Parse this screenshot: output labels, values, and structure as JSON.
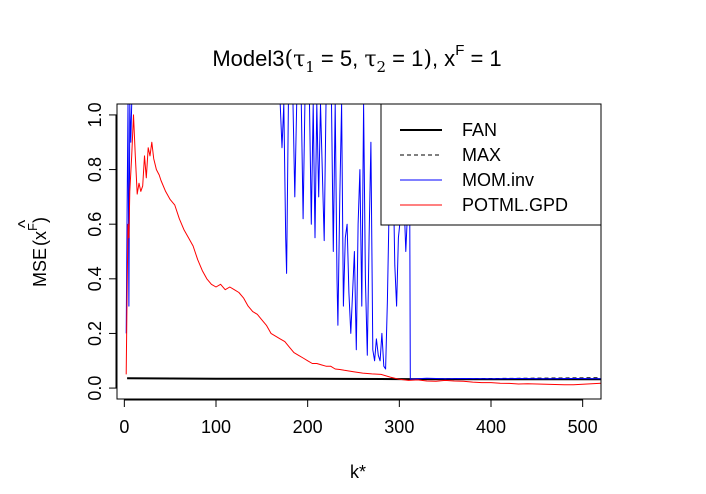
{
  "chart_data": {
    "type": "line",
    "title": {
      "prefix": "Model3",
      "open_paren": "(",
      "tau": "τ",
      "sub1": "1",
      "eq1": " = 5, ",
      "sub2": "2",
      "eq2": " = 1",
      "close_paren": ")",
      "x_part": ", x",
      "sup": "F",
      "eq3": " = 1"
    },
    "xlabel": "k*",
    "ylabel": {
      "prefix": "MSE",
      "hat": "^",
      "x": "x",
      "sup": "F"
    },
    "xlim": [
      -8,
      520
    ],
    "ylim": [
      -0.04,
      1.04
    ],
    "x_ticks": [
      0,
      100,
      200,
      300,
      400,
      500
    ],
    "y_ticks": [
      0.0,
      0.2,
      0.4,
      0.6,
      0.8,
      1.0
    ],
    "x_tick_labels": [
      "0",
      "100",
      "200",
      "300",
      "400",
      "500"
    ],
    "y_tick_labels": [
      "0.0",
      "0.2",
      "0.4",
      "0.6",
      "0.8",
      "1.0"
    ],
    "legend": {
      "position": "top-right"
    },
    "series": [
      {
        "name": "FAN",
        "color": "#000000",
        "style": "solid",
        "width": 2,
        "points": [
          [
            3,
            0.036
          ],
          [
            100,
            0.034
          ],
          [
            200,
            0.034
          ],
          [
            300,
            0.033
          ],
          [
            400,
            0.032
          ],
          [
            520,
            0.032
          ]
        ]
      },
      {
        "name": "MAX",
        "color": "#000000",
        "style": "dashed",
        "width": 1,
        "points": [
          [
            130,
            0.034
          ],
          [
            300,
            0.033
          ],
          [
            400,
            0.035
          ],
          [
            520,
            0.038
          ]
        ]
      },
      {
        "name": "MOM.inv",
        "color": "#0000ff",
        "style": "solid",
        "width": 1,
        "points": [
          [
            2,
            0.2
          ],
          [
            3,
            0.65
          ],
          [
            4,
            1.04
          ],
          [
            5,
            0.3
          ],
          [
            6,
            1.04
          ],
          [
            7,
            0.9
          ],
          [
            8,
            1.04
          ],
          [
            170,
            1.04
          ],
          [
            172,
            0.88
          ],
          [
            174,
            1.04
          ],
          [
            176,
            0.55
          ],
          [
            177,
            0.42
          ],
          [
            179,
            1.04
          ],
          [
            184,
            1.04
          ],
          [
            186,
            0.7
          ],
          [
            188,
            1.04
          ],
          [
            193,
            1.04
          ],
          [
            195,
            0.62
          ],
          [
            197,
            1.04
          ],
          [
            202,
            1.04
          ],
          [
            204,
            0.6
          ],
          [
            206,
            1.04
          ],
          [
            208,
            0.55
          ],
          [
            210,
            1.04
          ],
          [
            212,
            0.7
          ],
          [
            214,
            1.04
          ],
          [
            218,
            0.54
          ],
          [
            220,
            1.04
          ],
          [
            226,
            1.04
          ],
          [
            228,
            0.5
          ],
          [
            230,
            1.04
          ],
          [
            232,
            0.4
          ],
          [
            233,
            0.23
          ],
          [
            235,
            0.7
          ],
          [
            237,
            1.04
          ],
          [
            239,
            0.3
          ],
          [
            241,
            0.55
          ],
          [
            243,
            0.6
          ],
          [
            245,
            0.35
          ],
          [
            247,
            0.2
          ],
          [
            249,
            0.35
          ],
          [
            251,
            0.5
          ],
          [
            253,
            0.14
          ],
          [
            255,
            0.6
          ],
          [
            257,
            0.8
          ],
          [
            259,
            0.3
          ],
          [
            261,
            1.04
          ],
          [
            263,
            0.4
          ],
          [
            265,
            0.12
          ],
          [
            267,
            0.55
          ],
          [
            269,
            0.9
          ],
          [
            271,
            0.14
          ],
          [
            273,
            0.1
          ],
          [
            275,
            0.18
          ],
          [
            277,
            0.12
          ],
          [
            279,
            0.1
          ],
          [
            281,
            0.2
          ],
          [
            283,
            0.08
          ],
          [
            285,
            0.07
          ],
          [
            287,
            0.32
          ],
          [
            289,
            0.7
          ],
          [
            291,
            1.04
          ],
          [
            293,
            0.85
          ],
          [
            295,
            0.45
          ],
          [
            297,
            0.3
          ],
          [
            299,
            0.55
          ],
          [
            301,
            0.62
          ],
          [
            303,
            1.04
          ],
          [
            305,
            0.7
          ],
          [
            307,
            0.5
          ],
          [
            309,
            0.65
          ],
          [
            311,
            1.04
          ],
          [
            312,
            0.033
          ],
          [
            330,
            0.036
          ],
          [
            350,
            0.034
          ],
          [
            370,
            0.035
          ],
          [
            400,
            0.034
          ],
          [
            430,
            0.035
          ],
          [
            460,
            0.034
          ],
          [
            490,
            0.035
          ],
          [
            520,
            0.034
          ]
        ]
      },
      {
        "name": "POTML.GPD",
        "color": "#ff0000",
        "style": "solid",
        "width": 1,
        "points": [
          [
            2,
            0.05
          ],
          [
            3,
            0.35
          ],
          [
            4,
            0.6
          ],
          [
            5,
            0.55
          ],
          [
            6,
            0.72
          ],
          [
            8,
            0.85
          ],
          [
            10,
            1.0
          ],
          [
            12,
            0.85
          ],
          [
            14,
            0.71
          ],
          [
            16,
            0.75
          ],
          [
            18,
            0.72
          ],
          [
            20,
            0.74
          ],
          [
            22,
            0.85
          ],
          [
            24,
            0.77
          ],
          [
            26,
            0.88
          ],
          [
            28,
            0.85
          ],
          [
            30,
            0.9
          ],
          [
            32,
            0.84
          ],
          [
            35,
            0.8
          ],
          [
            38,
            0.78
          ],
          [
            40,
            0.76
          ],
          [
            45,
            0.72
          ],
          [
            50,
            0.69
          ],
          [
            55,
            0.67
          ],
          [
            60,
            0.62
          ],
          [
            65,
            0.58
          ],
          [
            70,
            0.55
          ],
          [
            75,
            0.52
          ],
          [
            80,
            0.47
          ],
          [
            85,
            0.43
          ],
          [
            90,
            0.4
          ],
          [
            95,
            0.38
          ],
          [
            100,
            0.37
          ],
          [
            105,
            0.38
          ],
          [
            110,
            0.36
          ],
          [
            115,
            0.37
          ],
          [
            120,
            0.36
          ],
          [
            125,
            0.35
          ],
          [
            130,
            0.33
          ],
          [
            135,
            0.3
          ],
          [
            140,
            0.28
          ],
          [
            145,
            0.27
          ],
          [
            150,
            0.25
          ],
          [
            155,
            0.23
          ],
          [
            160,
            0.2
          ],
          [
            165,
            0.19
          ],
          [
            170,
            0.18
          ],
          [
            175,
            0.17
          ],
          [
            180,
            0.15
          ],
          [
            185,
            0.13
          ],
          [
            190,
            0.12
          ],
          [
            195,
            0.11
          ],
          [
            200,
            0.1
          ],
          [
            205,
            0.09
          ],
          [
            210,
            0.09
          ],
          [
            215,
            0.085
          ],
          [
            220,
            0.08
          ],
          [
            225,
            0.08
          ],
          [
            230,
            0.07
          ],
          [
            235,
            0.068
          ],
          [
            240,
            0.065
          ],
          [
            250,
            0.06
          ],
          [
            260,
            0.055
          ],
          [
            270,
            0.052
          ],
          [
            280,
            0.05
          ],
          [
            290,
            0.04
          ],
          [
            300,
            0.032
          ],
          [
            310,
            0.028
          ],
          [
            320,
            0.03
          ],
          [
            330,
            0.026
          ],
          [
            340,
            0.025
          ],
          [
            350,
            0.028
          ],
          [
            360,
            0.026
          ],
          [
            370,
            0.025
          ],
          [
            380,
            0.022
          ],
          [
            390,
            0.02
          ],
          [
            400,
            0.02
          ],
          [
            410,
            0.018
          ],
          [
            420,
            0.017
          ],
          [
            430,
            0.015
          ],
          [
            440,
            0.016
          ],
          [
            450,
            0.015
          ],
          [
            460,
            0.014
          ],
          [
            470,
            0.013
          ],
          [
            480,
            0.012
          ],
          [
            490,
            0.012
          ],
          [
            500,
            0.014
          ],
          [
            510,
            0.016
          ],
          [
            520,
            0.018
          ]
        ]
      }
    ]
  }
}
